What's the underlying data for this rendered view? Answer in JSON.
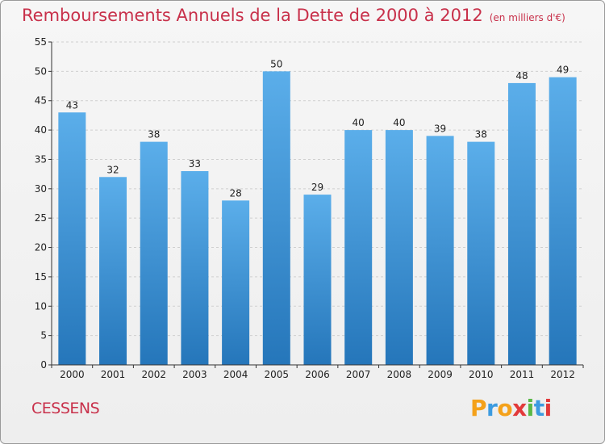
{
  "title": "Remboursements Annuels de la Dette de 2000 à 2012",
  "unit": "(en milliers d'€)",
  "commune": "CESSENS",
  "brand": {
    "letters": [
      "P",
      "r",
      "o",
      "x",
      "i",
      "t",
      "i"
    ],
    "colors": [
      "#f4a11a",
      "#3c9be0",
      "#f4a11a",
      "#e2393a",
      "#59b845",
      "#3c9be0",
      "#e2393a"
    ]
  },
  "colors": {
    "bar_light": "#5baeea",
    "bar_dark": "#2576ba",
    "title": "#c8304a"
  },
  "chart_data": {
    "type": "bar",
    "title": "Remboursements Annuels de la Dette de 2000 à 2012",
    "xlabel": "",
    "ylabel": "(en milliers d'€)",
    "categories": [
      "2000",
      "2001",
      "2002",
      "2003",
      "2004",
      "2005",
      "2006",
      "2007",
      "2008",
      "2009",
      "2010",
      "2011",
      "2012"
    ],
    "values": [
      43,
      32,
      38,
      33,
      28,
      50,
      29,
      40,
      40,
      39,
      38,
      48,
      49
    ],
    "ylim": [
      0,
      55
    ],
    "yticks": [
      0,
      5,
      10,
      15,
      20,
      25,
      30,
      35,
      40,
      45,
      50,
      55
    ],
    "grid": true,
    "legend": "none"
  }
}
